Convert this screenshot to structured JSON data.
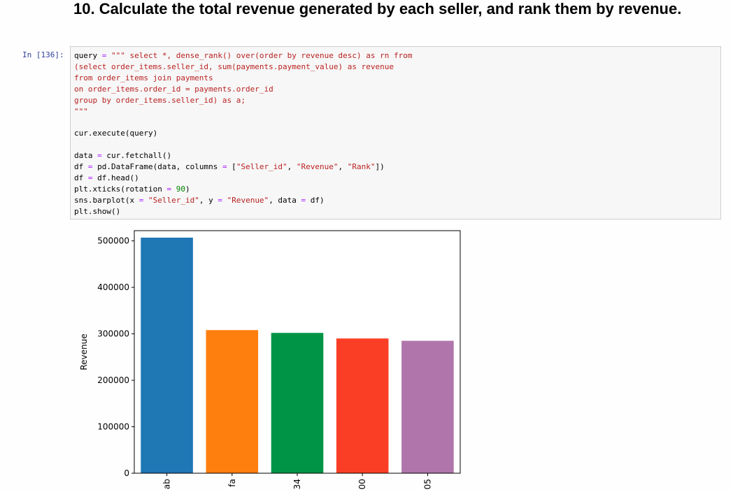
{
  "notebook": {
    "heading": "10. Calculate the total revenue generated by each seller, and rank them by revenue.",
    "prompt": "In [136]:",
    "code_lines": [
      [
        {
          "t": "query ",
          "c": ""
        },
        {
          "t": "=",
          "c": "op"
        },
        {
          "t": " \"\"\" select *, dense_rank() over(order by revenue desc) as rn from",
          "c": "str"
        }
      ],
      [
        {
          "t": "(select order_items.seller_id, sum(payments.payment_value) as revenue",
          "c": "str"
        }
      ],
      [
        {
          "t": "from order_items join payments",
          "c": "str"
        }
      ],
      [
        {
          "t": "on order_items.order_id = payments.order_id",
          "c": "str"
        }
      ],
      [
        {
          "t": "group by order_items.seller_id) as a;",
          "c": "str"
        }
      ],
      [
        {
          "t": "\"\"\"",
          "c": "str"
        }
      ],
      [],
      [
        {
          "t": "cur.execute(query)",
          "c": ""
        }
      ],
      [],
      [
        {
          "t": "data ",
          "c": ""
        },
        {
          "t": "=",
          "c": "op"
        },
        {
          "t": " cur.fetchall()",
          "c": ""
        }
      ],
      [
        {
          "t": "df ",
          "c": ""
        },
        {
          "t": "=",
          "c": "op"
        },
        {
          "t": " pd.DataFrame(data, columns ",
          "c": ""
        },
        {
          "t": "=",
          "c": "op"
        },
        {
          "t": " [",
          "c": ""
        },
        {
          "t": "\"Seller_id\"",
          "c": "str"
        },
        {
          "t": ", ",
          "c": ""
        },
        {
          "t": "\"Revenue\"",
          "c": "str"
        },
        {
          "t": ", ",
          "c": ""
        },
        {
          "t": "\"Rank\"",
          "c": "str"
        },
        {
          "t": "])",
          "c": ""
        }
      ],
      [
        {
          "t": "df ",
          "c": ""
        },
        {
          "t": "=",
          "c": "op"
        },
        {
          "t": " df.head()",
          "c": ""
        }
      ],
      [
        {
          "t": "plt.xticks(rotation ",
          "c": ""
        },
        {
          "t": "=",
          "c": "op"
        },
        {
          "t": " ",
          "c": ""
        },
        {
          "t": "90",
          "c": "num"
        },
        {
          "t": ")",
          "c": ""
        }
      ],
      [
        {
          "t": "sns.barplot(x ",
          "c": ""
        },
        {
          "t": "=",
          "c": "op"
        },
        {
          "t": " ",
          "c": ""
        },
        {
          "t": "\"Seller_id\"",
          "c": "str"
        },
        {
          "t": ", y ",
          "c": ""
        },
        {
          "t": "=",
          "c": "op"
        },
        {
          "t": " ",
          "c": ""
        },
        {
          "t": "\"Revenue\"",
          "c": "str"
        },
        {
          "t": ", data ",
          "c": ""
        },
        {
          "t": "=",
          "c": "op"
        },
        {
          "t": " df)",
          "c": ""
        }
      ],
      [
        {
          "t": "plt.show()",
          "c": ""
        }
      ]
    ]
  },
  "colors": {
    "str": "#ba2121",
    "op": "#aa22ff",
    "num": "#008000"
  },
  "chart_data": {
    "type": "bar",
    "categories": [
      "ab",
      "fa",
      "34",
      "00",
      "05"
    ],
    "values": [
      507000,
      308000,
      302000,
      290000,
      285000
    ],
    "colors": [
      "#1f77b4",
      "#ff7f0e",
      "#009447",
      "#fa3e25",
      "#b075ab"
    ],
    "title": "",
    "xlabel": "",
    "ylabel": "Revenue",
    "ylim": [
      0,
      522000
    ],
    "yticks": [
      0,
      100000,
      200000,
      300000,
      400000,
      500000
    ]
  }
}
